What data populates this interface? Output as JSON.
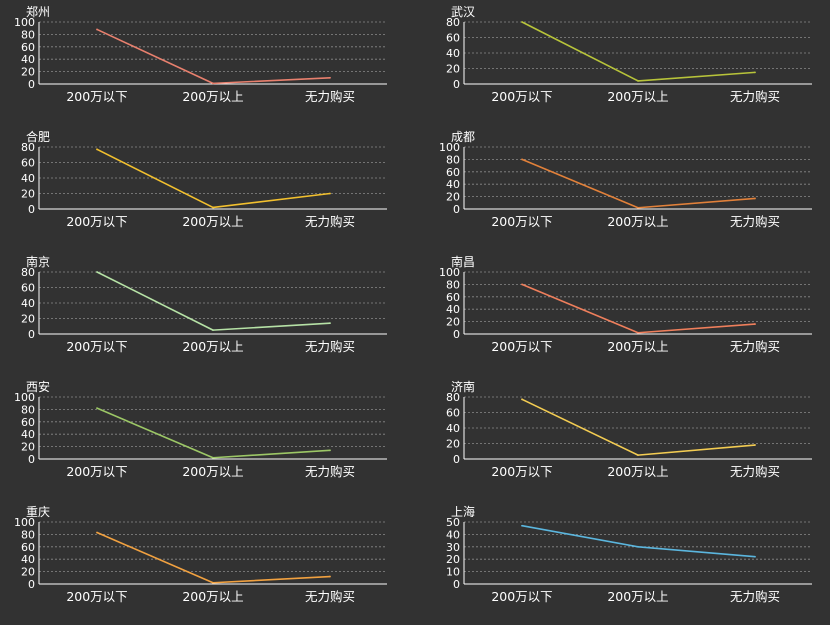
{
  "colors": {
    "background": "#323232",
    "axis": "#ffffff",
    "grid": "#8a8a8a",
    "text": "#ffffff"
  },
  "chart_data": [
    {
      "type": "line",
      "title": "郑州",
      "categories": [
        "200万以下",
        "200万以上",
        "无力购买"
      ],
      "ylim": [
        0,
        100
      ],
      "yticks": [
        0,
        20,
        40,
        60,
        80,
        100
      ],
      "grid": true,
      "series": [
        {
          "values": [
            88,
            1,
            10
          ],
          "color": "#e8806e"
        }
      ]
    },
    {
      "type": "line",
      "title": "武汉",
      "categories": [
        "200万以下",
        "200万以上",
        "无力购买"
      ],
      "ylim": [
        0,
        80
      ],
      "yticks": [
        0,
        20,
        40,
        60,
        80
      ],
      "grid": true,
      "series": [
        {
          "values": [
            80,
            4,
            15
          ],
          "color": "#b8c43a"
        }
      ]
    },
    {
      "type": "line",
      "title": "合肥",
      "categories": [
        "200万以下",
        "200万以上",
        "无力购买"
      ],
      "ylim": [
        0,
        80
      ],
      "yticks": [
        0,
        20,
        40,
        60,
        80
      ],
      "grid": true,
      "series": [
        {
          "values": [
            77,
            2,
            20
          ],
          "color": "#f2c02e"
        }
      ]
    },
    {
      "type": "line",
      "title": "成都",
      "categories": [
        "200万以下",
        "200万以上",
        "无力购买"
      ],
      "ylim": [
        0,
        100
      ],
      "yticks": [
        0,
        20,
        40,
        60,
        80,
        100
      ],
      "grid": true,
      "series": [
        {
          "values": [
            80,
            2,
            17
          ],
          "color": "#e2813a"
        }
      ]
    },
    {
      "type": "line",
      "title": "南京",
      "categories": [
        "200万以下",
        "200万以上",
        "无力购买"
      ],
      "ylim": [
        0,
        80
      ],
      "yticks": [
        0,
        20,
        40,
        60,
        80
      ],
      "grid": true,
      "series": [
        {
          "values": [
            80,
            5,
            14
          ],
          "color": "#b6e2a6"
        }
      ]
    },
    {
      "type": "line",
      "title": "南昌",
      "categories": [
        "200万以下",
        "200万以上",
        "无力购买"
      ],
      "ylim": [
        0,
        100
      ],
      "yticks": [
        0,
        20,
        40,
        60,
        80,
        100
      ],
      "grid": true,
      "series": [
        {
          "values": [
            80,
            2,
            16
          ],
          "color": "#ef7f5c"
        }
      ]
    },
    {
      "type": "line",
      "title": "西安",
      "categories": [
        "200万以下",
        "200万以上",
        "无力购买"
      ],
      "ylim": [
        0,
        100
      ],
      "yticks": [
        0,
        20,
        40,
        60,
        80,
        100
      ],
      "grid": true,
      "series": [
        {
          "values": [
            82,
            2,
            14
          ],
          "color": "#9cc766"
        }
      ]
    },
    {
      "type": "line",
      "title": "济南",
      "categories": [
        "200万以下",
        "200万以上",
        "无力购买"
      ],
      "ylim": [
        0,
        80
      ],
      "yticks": [
        0,
        20,
        40,
        60,
        80
      ],
      "grid": true,
      "series": [
        {
          "values": [
            77,
            5,
            18
          ],
          "color": "#f3cc52"
        }
      ]
    },
    {
      "type": "line",
      "title": "重庆",
      "categories": [
        "200万以下",
        "200万以上",
        "无力购买"
      ],
      "ylim": [
        0,
        100
      ],
      "yticks": [
        0,
        20,
        40,
        60,
        80,
        100
      ],
      "grid": true,
      "series": [
        {
          "values": [
            83,
            2,
            12
          ],
          "color": "#f1a140"
        }
      ]
    },
    {
      "type": "line",
      "title": "上海",
      "categories": [
        "200万以下",
        "200万以上",
        "无力购买"
      ],
      "ylim": [
        0,
        50
      ],
      "yticks": [
        0,
        10,
        20,
        30,
        40,
        50
      ],
      "grid": true,
      "series": [
        {
          "values": [
            47,
            30,
            22
          ],
          "color": "#5bb6de"
        }
      ]
    }
  ]
}
